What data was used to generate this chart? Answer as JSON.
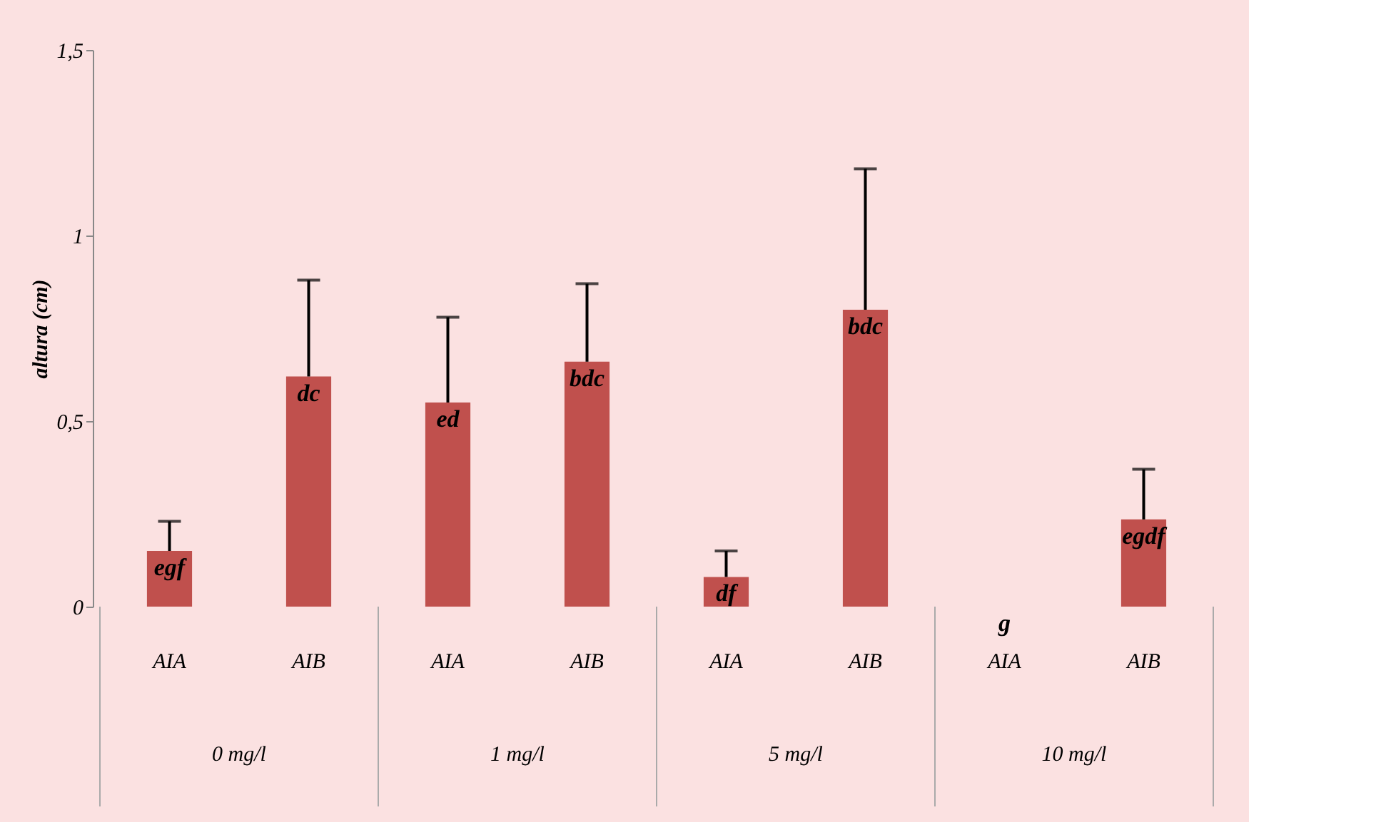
{
  "chart_data": {
    "type": "bar",
    "ylabel": "altura (cm)",
    "categories": [
      "AIA",
      "AIB",
      "AIA",
      "AIB",
      "AIA",
      "AIB",
      "AIA",
      "AIB"
    ],
    "values": [
      0.15,
      0.62,
      0.55,
      0.66,
      0.08,
      0.8,
      0,
      0.235
    ],
    "errors": [
      [
        0.15,
        0.23
      ],
      [
        0.62,
        0.88
      ],
      [
        0.55,
        0.78
      ],
      [
        0.66,
        0.87
      ],
      [
        0.08,
        0.15
      ],
      [
        0.8,
        1.18
      ],
      null,
      [
        0.235,
        0.37
      ]
    ],
    "value_labels": [
      "egf",
      "dc",
      "ed",
      "bdc",
      "df",
      "bdc",
      "g",
      "egdf"
    ],
    "annotations": [
      "0 mg/l",
      "1 mg/l",
      "5 mg/l",
      "10 mg/l"
    ],
    "color": "#c0504d",
    "ylim": [
      0,
      1.5
    ],
    "yticks": [
      0,
      {
        "value": 0.5,
        "label": "0,5"
      },
      1,
      {
        "value": 1.5,
        "label": "1,5"
      }
    ],
    "grid": false
  }
}
